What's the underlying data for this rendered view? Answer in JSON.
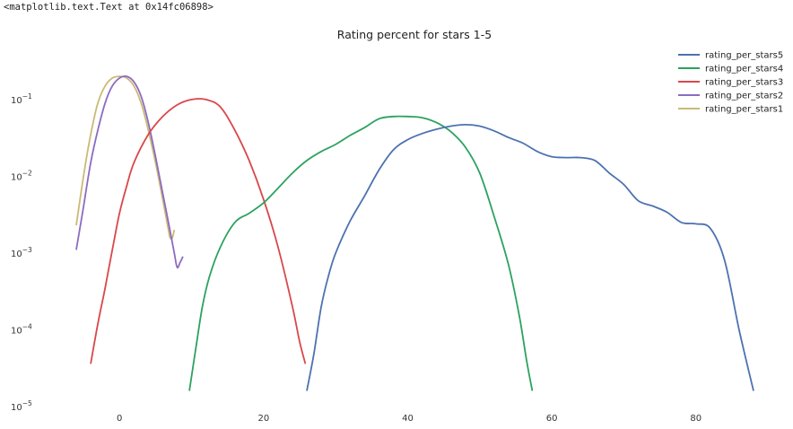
{
  "output_repr": "<matplotlib.text.Text at 0x14fc06898>",
  "chart_data": {
    "type": "line",
    "title": "Rating percent for stars 1-5",
    "xlabel": "",
    "ylabel": "",
    "xlim": [
      -7,
      89
    ],
    "ylim": [
      1e-05,
      0.45
    ],
    "yscale": "log",
    "x_ticks": [
      0,
      20,
      40,
      60,
      80
    ],
    "x_tick_labels": [
      "0",
      "20",
      "40",
      "60",
      "80"
    ],
    "y_ticks": [
      0.1,
      0.01,
      0.001,
      0.0001,
      1e-05
    ],
    "y_tick_labels": [
      {
        "base": "10",
        "exp": "−1"
      },
      {
        "base": "10",
        "exp": "−2"
      },
      {
        "base": "10",
        "exp": "−3"
      },
      {
        "base": "10",
        "exp": "−4"
      },
      {
        "base": "10",
        "exp": "−5"
      }
    ],
    "grid": false,
    "legend_position": "top-right",
    "series": [
      {
        "name": "rating_per_stars5",
        "color": "#4c72b0",
        "points": [
          [
            26,
            1.6e-05
          ],
          [
            27,
            5e-05
          ],
          [
            28,
            0.0002
          ],
          [
            29,
            0.0005
          ],
          [
            30,
            0.001
          ],
          [
            32,
            0.0026
          ],
          [
            34,
            0.0055
          ],
          [
            36,
            0.012
          ],
          [
            38,
            0.022
          ],
          [
            40,
            0.03
          ],
          [
            42,
            0.036
          ],
          [
            44,
            0.041
          ],
          [
            46,
            0.045
          ],
          [
            48,
            0.047
          ],
          [
            50,
            0.045
          ],
          [
            52,
            0.039
          ],
          [
            54,
            0.032
          ],
          [
            56,
            0.027
          ],
          [
            58,
            0.021
          ],
          [
            60,
            0.018
          ],
          [
            62,
            0.0175
          ],
          [
            64,
            0.0175
          ],
          [
            66,
            0.016
          ],
          [
            68,
            0.011
          ],
          [
            70,
            0.0078
          ],
          [
            72,
            0.0048
          ],
          [
            74,
            0.0041
          ],
          [
            76,
            0.0034
          ],
          [
            78,
            0.0025
          ],
          [
            80,
            0.0024
          ],
          [
            82,
            0.0021
          ],
          [
            84,
            0.0008
          ],
          [
            86,
            0.0001
          ],
          [
            88,
            1.6e-05
          ]
        ]
      },
      {
        "name": "rating_per_stars4",
        "color": "#2ca25f",
        "points": [
          [
            9.7,
            1.6e-05
          ],
          [
            10.5,
            5e-05
          ],
          [
            11.5,
            0.0002
          ],
          [
            12.5,
            0.0005
          ],
          [
            14,
            0.0012
          ],
          [
            16,
            0.0025
          ],
          [
            18,
            0.0033
          ],
          [
            20,
            0.0045
          ],
          [
            22,
            0.007
          ],
          [
            24,
            0.011
          ],
          [
            26,
            0.016
          ],
          [
            28,
            0.021
          ],
          [
            30,
            0.026
          ],
          [
            32,
            0.034
          ],
          [
            34,
            0.043
          ],
          [
            36,
            0.056
          ],
          [
            38,
            0.06
          ],
          [
            40,
            0.06
          ],
          [
            42,
            0.058
          ],
          [
            44,
            0.05
          ],
          [
            46,
            0.038
          ],
          [
            48,
            0.024
          ],
          [
            50,
            0.011
          ],
          [
            52,
            0.003
          ],
          [
            54,
            0.0007
          ],
          [
            55.5,
            0.00015
          ],
          [
            56.5,
            4e-05
          ],
          [
            57.3,
            1.6e-05
          ]
        ]
      },
      {
        "name": "rating_per_stars3",
        "color": "#d9474a",
        "points": [
          [
            -4,
            3.6e-05
          ],
          [
            -3,
            0.00012
          ],
          [
            -2,
            0.00035
          ],
          [
            -1,
            0.0011
          ],
          [
            0,
            0.0033
          ],
          [
            1,
            0.0075
          ],
          [
            2,
            0.015
          ],
          [
            4,
            0.035
          ],
          [
            6,
            0.06
          ],
          [
            8,
            0.085
          ],
          [
            10,
            0.1
          ],
          [
            12,
            0.1
          ],
          [
            14,
            0.08
          ],
          [
            16,
            0.04
          ],
          [
            18,
            0.016
          ],
          [
            20,
            0.005
          ],
          [
            22,
            0.0012
          ],
          [
            24,
            0.0002
          ],
          [
            25,
            7e-05
          ],
          [
            25.8,
            3.6e-05
          ]
        ]
      },
      {
        "name": "rating_per_stars2",
        "color": "#8c6bc2",
        "points": [
          [
            -6,
            0.0011
          ],
          [
            -5,
            0.004
          ],
          [
            -4,
            0.015
          ],
          [
            -3,
            0.04
          ],
          [
            -2,
            0.09
          ],
          [
            -1,
            0.15
          ],
          [
            0,
            0.19
          ],
          [
            1,
            0.2
          ],
          [
            2,
            0.17
          ],
          [
            3,
            0.11
          ],
          [
            4,
            0.05
          ],
          [
            5,
            0.018
          ],
          [
            6,
            0.006
          ],
          [
            7,
            0.002
          ],
          [
            7.6,
            0.001
          ],
          [
            8,
            0.00065
          ],
          [
            8.4,
            0.00075
          ],
          [
            8.8,
            0.0009
          ]
        ]
      },
      {
        "name": "rating_per_stars1",
        "color": "#ccb974",
        "points": [
          [
            -6,
            0.0023
          ],
          [
            -5,
            0.01
          ],
          [
            -4,
            0.035
          ],
          [
            -3,
            0.09
          ],
          [
            -2,
            0.15
          ],
          [
            -1,
            0.19
          ],
          [
            0,
            0.2
          ],
          [
            1,
            0.19
          ],
          [
            2,
            0.15
          ],
          [
            3,
            0.09
          ],
          [
            4,
            0.04
          ],
          [
            5,
            0.015
          ],
          [
            6,
            0.005
          ],
          [
            6.8,
            0.002
          ],
          [
            7,
            0.0016
          ],
          [
            7.3,
            0.00155
          ],
          [
            7.6,
            0.002
          ]
        ]
      }
    ]
  }
}
